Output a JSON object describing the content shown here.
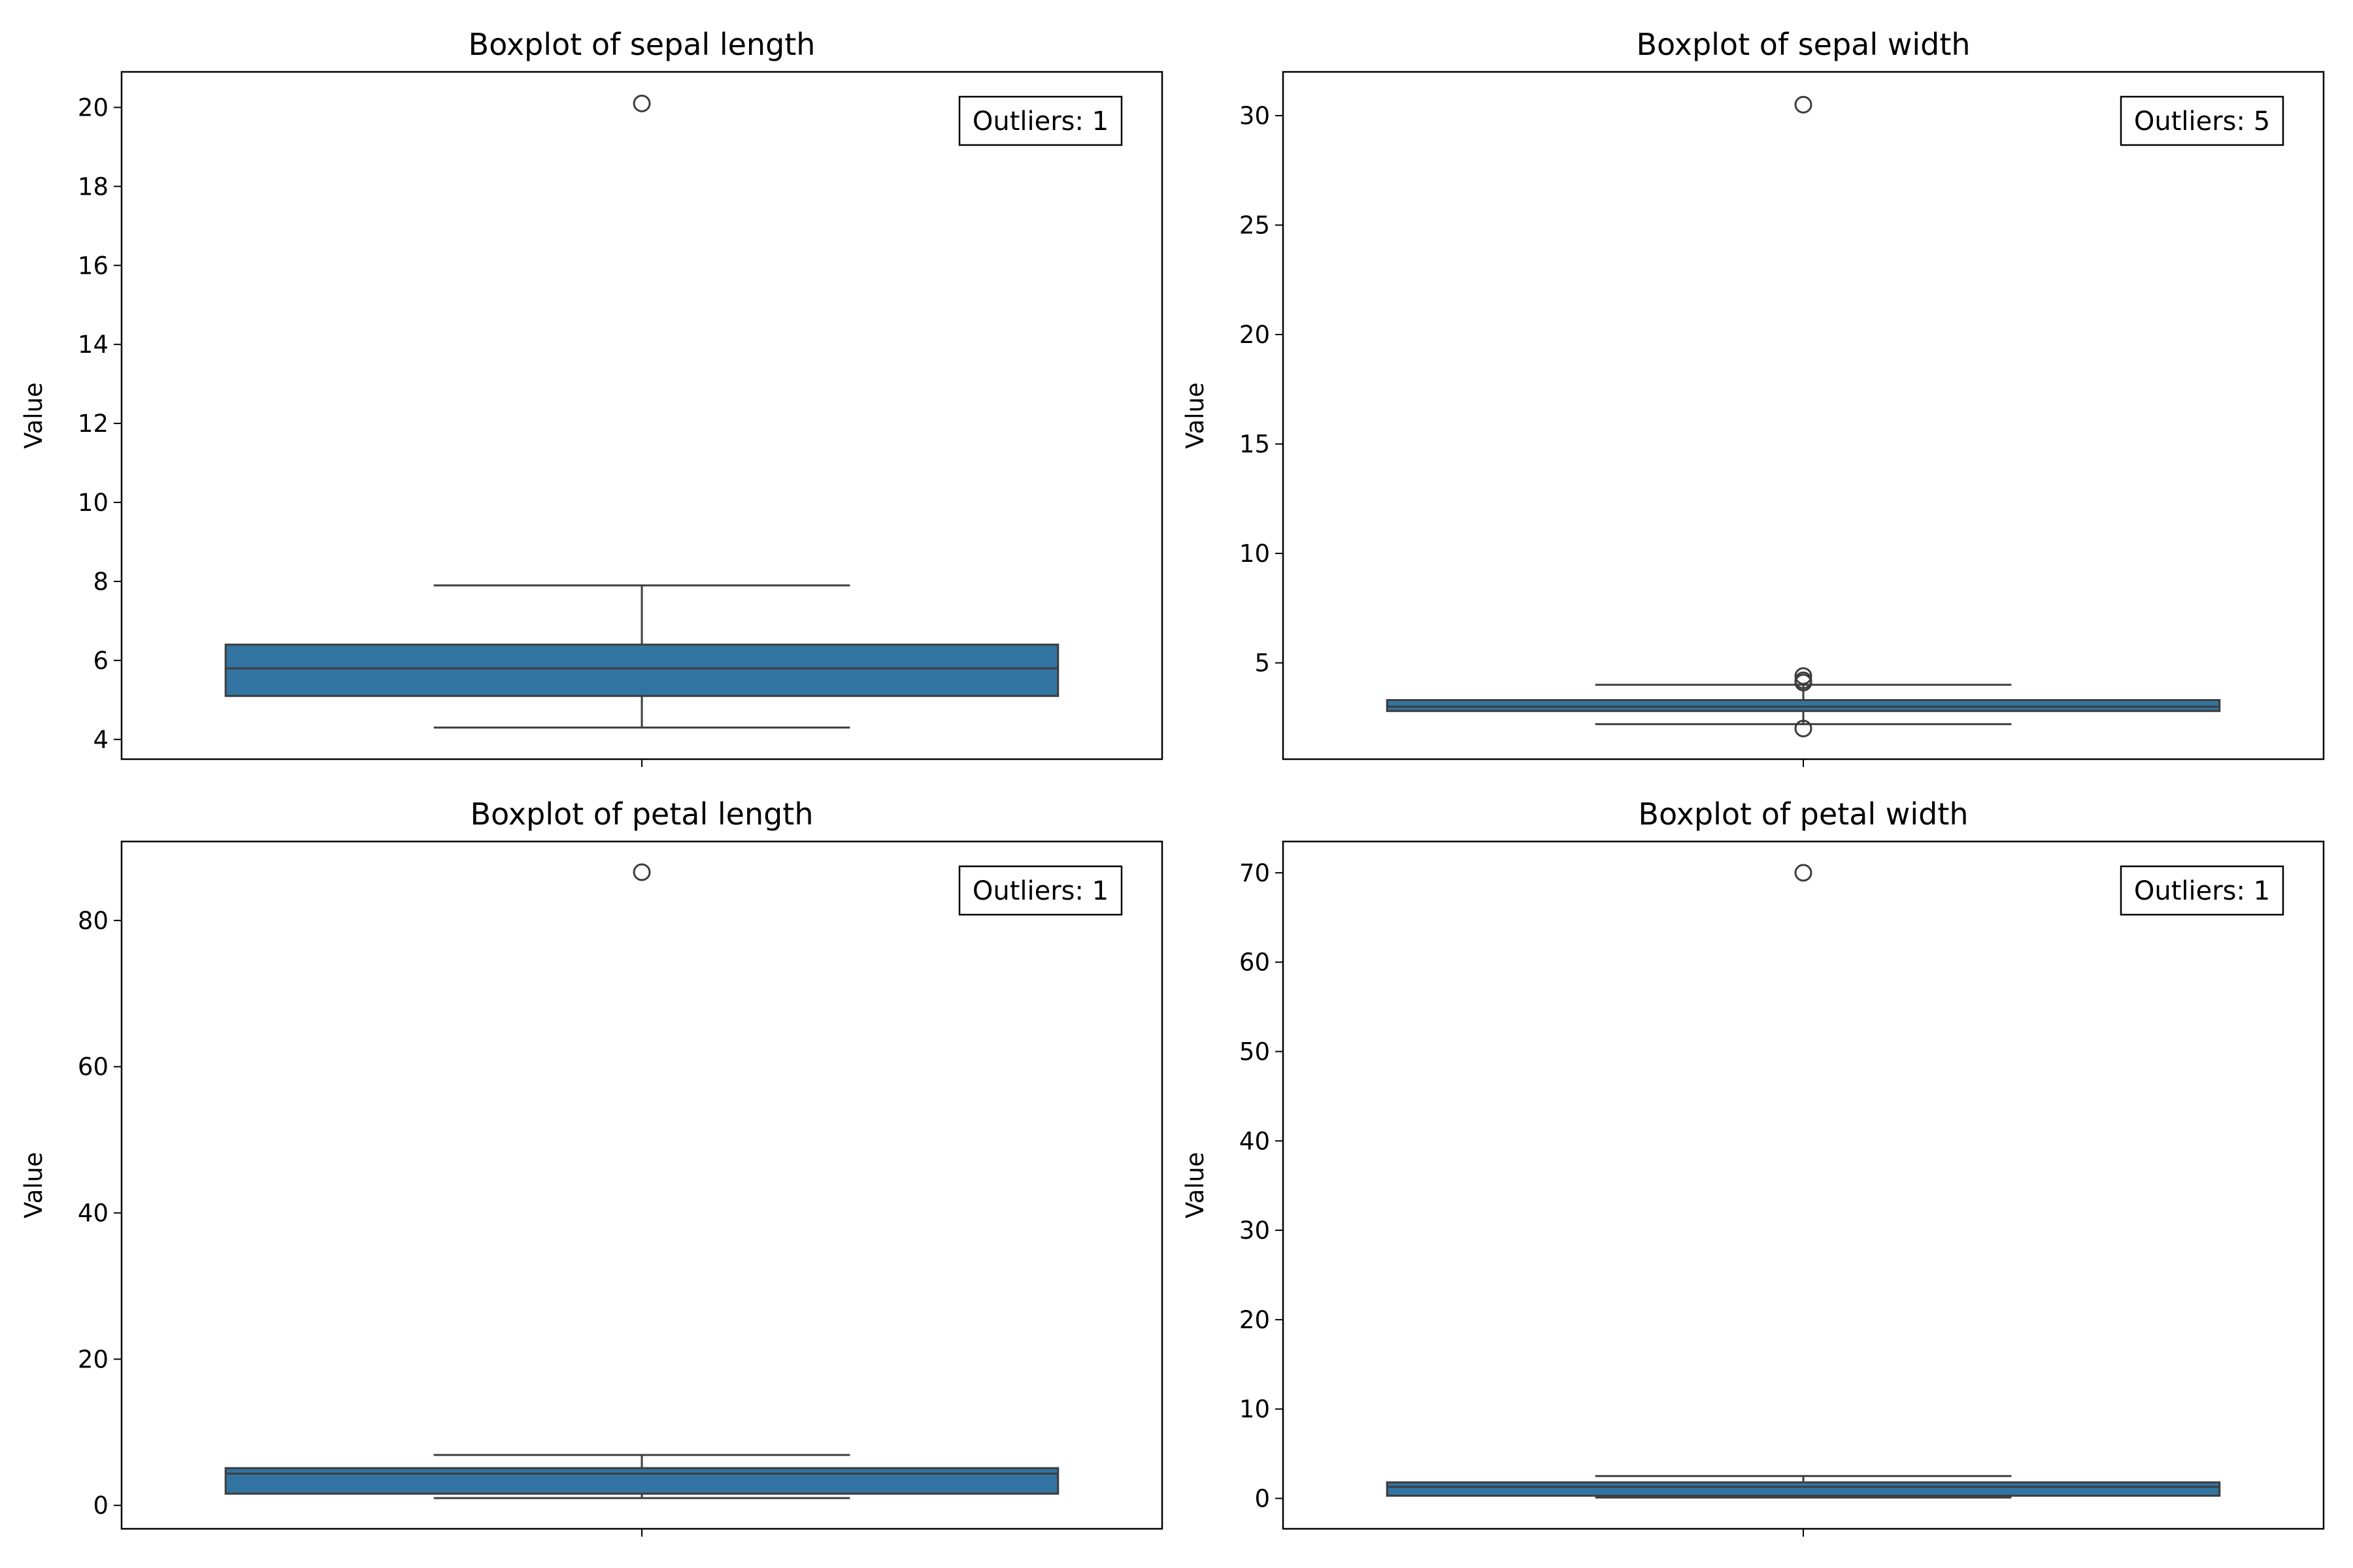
{
  "figure": {
    "box_color": "#3274a1",
    "line_color": "#3d3d3d"
  },
  "chart_data": [
    {
      "type": "box",
      "title": "Boxplot of sepal length",
      "xlabel": "",
      "ylabel": "Value",
      "ylim": [
        3.5,
        20.9
      ],
      "yticks": [
        4,
        6,
        8,
        10,
        12,
        14,
        16,
        18,
        20
      ],
      "annotation": "Outliers: 1",
      "box": {
        "whislo": 4.3,
        "q1": 5.1,
        "med": 5.8,
        "q3": 6.4,
        "whishi": 7.9,
        "fliers": [
          20.1
        ]
      }
    },
    {
      "type": "box",
      "title": "Boxplot of sepal width",
      "xlabel": "",
      "ylabel": "Value",
      "ylim": [
        0.6,
        32.0
      ],
      "yticks": [
        5,
        10,
        15,
        20,
        25,
        30
      ],
      "annotation": "Outliers: 5",
      "box": {
        "whislo": 2.2,
        "q1": 2.8,
        "med": 3.0,
        "q3": 3.3,
        "whishi": 4.0,
        "fliers": [
          30.5,
          4.4,
          4.2,
          4.1,
          2.0
        ]
      }
    },
    {
      "type": "box",
      "title": "Boxplot of petal length",
      "xlabel": "",
      "ylabel": "Value",
      "ylim": [
        -3.2,
        90.8
      ],
      "yticks": [
        0,
        20,
        40,
        60,
        80
      ],
      "annotation": "Outliers: 1",
      "box": {
        "whislo": 1.0,
        "q1": 1.6,
        "med": 4.35,
        "q3": 5.1,
        "whishi": 6.9,
        "fliers": [
          86.6
        ]
      }
    },
    {
      "type": "box",
      "title": "Boxplot of petal width",
      "xlabel": "",
      "ylabel": "Value",
      "ylim": [
        -3.4,
        73.5
      ],
      "yticks": [
        0,
        10,
        20,
        30,
        40,
        50,
        60,
        70
      ],
      "annotation": "Outliers: 1",
      "box": {
        "whislo": 0.1,
        "q1": 0.3,
        "med": 1.3,
        "q3": 1.8,
        "whishi": 2.5,
        "fliers": [
          70.0
        ]
      }
    }
  ]
}
